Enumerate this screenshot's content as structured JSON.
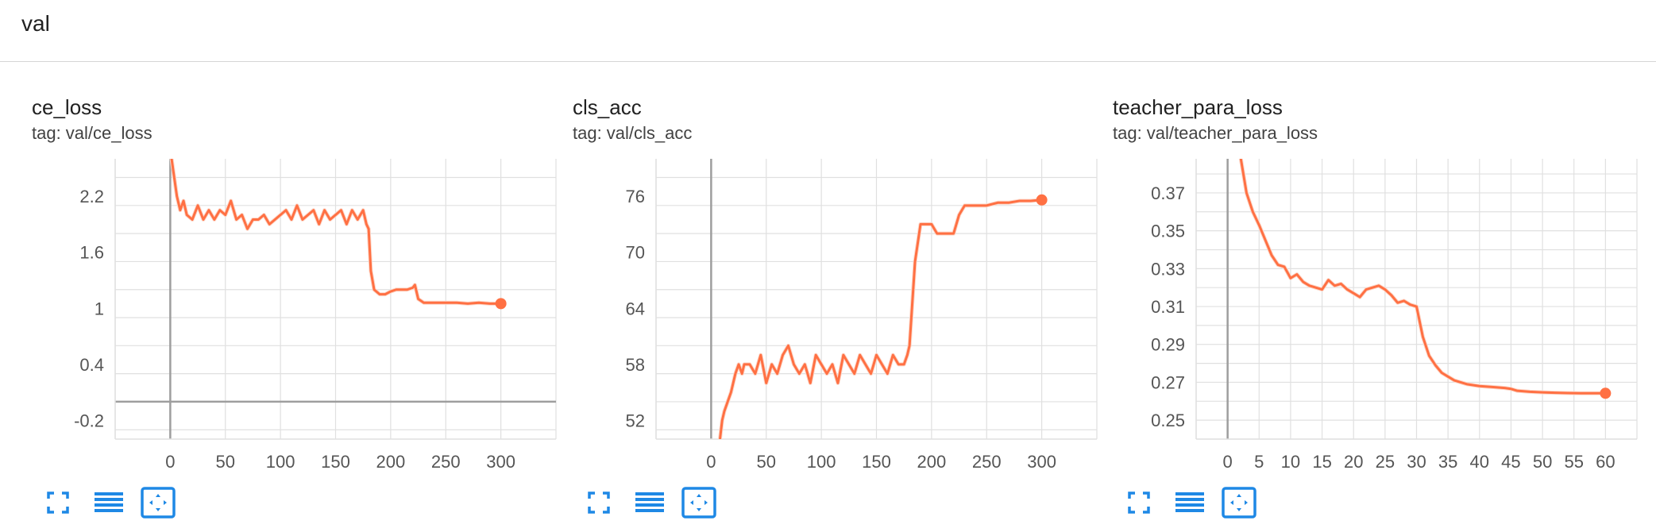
{
  "section": {
    "title": "val"
  },
  "colors": {
    "accent": "#ff7043",
    "smoothed_faint": "#fcd9cc",
    "grid": "#e0e0e0",
    "axis": "#9e9e9e",
    "icon": "#1e88e5"
  },
  "icons": {
    "fullscreen": "fullscreen-icon",
    "data_table": "list-icon",
    "fit_domain": "fit-domain-icon"
  },
  "chart_data": [
    {
      "type": "line",
      "title": "ce_loss",
      "tag": "tag: val/ce_loss",
      "xlim": [
        -50,
        350
      ],
      "ylim": [
        -0.4,
        2.6
      ],
      "xticks": [
        0,
        50,
        100,
        150,
        200,
        250,
        300
      ],
      "xtick_labels": [
        "0",
        "50",
        "100",
        "150",
        "200",
        "250",
        "300"
      ],
      "yticks": [
        -0.2,
        0.4,
        1,
        1.6,
        2.2
      ],
      "ytick_labels": [
        "-0.2",
        "0.4",
        "1",
        "1.6",
        "2.2"
      ],
      "grid": true,
      "series": [
        {
          "x": [
            0,
            3,
            6,
            9,
            12,
            15,
            20,
            25,
            30,
            35,
            40,
            45,
            50,
            55,
            60,
            65,
            70,
            75,
            80,
            85,
            90,
            95,
            100,
            105,
            110,
            115,
            120,
            125,
            130,
            135,
            140,
            145,
            150,
            155,
            160,
            165,
            170,
            175,
            178,
            180,
            182,
            185,
            190,
            195,
            200,
            205,
            210,
            215,
            220,
            222,
            225,
            230,
            240,
            250,
            260,
            270,
            280,
            290,
            300
          ],
          "y": [
            2.7,
            2.45,
            2.2,
            2.05,
            2.15,
            2.0,
            1.95,
            2.1,
            1.95,
            2.05,
            1.95,
            2.05,
            2.0,
            2.15,
            1.95,
            2.0,
            1.85,
            1.95,
            1.95,
            2.0,
            1.9,
            1.95,
            2.0,
            2.05,
            1.95,
            2.1,
            1.95,
            2.0,
            2.05,
            1.9,
            2.05,
            1.95,
            2.0,
            2.05,
            1.9,
            2.05,
            1.95,
            2.05,
            1.9,
            1.85,
            1.4,
            1.2,
            1.15,
            1.15,
            1.18,
            1.2,
            1.2,
            1.2,
            1.22,
            1.25,
            1.1,
            1.06,
            1.06,
            1.06,
            1.06,
            1.05,
            1.06,
            1.05,
            1.05
          ]
        }
      ]
    },
    {
      "type": "line",
      "title": "cls_acc",
      "tag": "tag: val/cls_acc",
      "xlim": [
        -50,
        350
      ],
      "ylim": [
        50,
        80
      ],
      "xticks": [
        0,
        50,
        100,
        150,
        200,
        250,
        300
      ],
      "xtick_labels": [
        "0",
        "50",
        "100",
        "150",
        "200",
        "250",
        "300"
      ],
      "yticks": [
        52,
        58,
        64,
        70,
        76
      ],
      "ytick_labels": [
        "52",
        "58",
        "64",
        "70",
        "76"
      ],
      "grid": true,
      "series": [
        {
          "x": [
            8,
            10,
            12,
            15,
            18,
            20,
            22,
            25,
            28,
            30,
            35,
            40,
            45,
            50,
            55,
            60,
            65,
            70,
            75,
            80,
            85,
            90,
            95,
            100,
            105,
            110,
            115,
            120,
            125,
            130,
            135,
            140,
            145,
            150,
            155,
            160,
            165,
            170,
            175,
            178,
            180,
            185,
            190,
            195,
            200,
            205,
            210,
            215,
            220,
            225,
            230,
            240,
            250,
            260,
            270,
            280,
            290,
            300
          ],
          "y": [
            50,
            52,
            53,
            54,
            55,
            56,
            57,
            58,
            57,
            58,
            58,
            57,
            59,
            56,
            58,
            57,
            59,
            60,
            58,
            57,
            58,
            56,
            59,
            58,
            57,
            58,
            56,
            59,
            58,
            57,
            59,
            58,
            57,
            59,
            58,
            57,
            59,
            58,
            58,
            59,
            60,
            69,
            73,
            73,
            73,
            72,
            72,
            72,
            72,
            74,
            75,
            75,
            75,
            75.3,
            75.3,
            75.5,
            75.5,
            75.6
          ]
        }
      ]
    },
    {
      "type": "line",
      "title": "teacher_para_loss",
      "tag": "tag: val/teacher_para_loss",
      "xlim": [
        -5,
        65
      ],
      "ylim": [
        0.24,
        0.388
      ],
      "xticks": [
        0,
        5,
        10,
        15,
        20,
        25,
        30,
        35,
        40,
        45,
        50,
        55,
        60
      ],
      "xtick_labels": [
        "0",
        "5",
        "10",
        "15",
        "20",
        "25",
        "30",
        "35",
        "40",
        "45",
        "50",
        "55",
        "60"
      ],
      "yticks": [
        0.25,
        0.27,
        0.29,
        0.31,
        0.33,
        0.35,
        0.37
      ],
      "ytick_labels": [
        "0.25",
        "0.27",
        "0.29",
        "0.31",
        "0.33",
        "0.35",
        "0.37"
      ],
      "grid": true,
      "series": [
        {
          "x": [
            2,
            3,
            4,
            5,
            6,
            7,
            8,
            9,
            10,
            11,
            12,
            13,
            14,
            15,
            16,
            17,
            18,
            19,
            20,
            21,
            22,
            23,
            24,
            25,
            26,
            27,
            28,
            29,
            30,
            31,
            32,
            33,
            34,
            35,
            36,
            38,
            40,
            42,
            44,
            45,
            46,
            48,
            50,
            52,
            54,
            56,
            58,
            60
          ],
          "y": [
            0.39,
            0.37,
            0.36,
            0.353,
            0.345,
            0.337,
            0.332,
            0.331,
            0.325,
            0.327,
            0.323,
            0.321,
            0.32,
            0.319,
            0.324,
            0.321,
            0.322,
            0.319,
            0.317,
            0.315,
            0.319,
            0.32,
            0.321,
            0.319,
            0.316,
            0.312,
            0.313,
            0.311,
            0.31,
            0.294,
            0.284,
            0.279,
            0.275,
            0.273,
            0.271,
            0.269,
            0.268,
            0.2675,
            0.267,
            0.2665,
            0.2655,
            0.265,
            0.2647,
            0.2645,
            0.2643,
            0.2642,
            0.2642,
            0.2642
          ]
        }
      ]
    }
  ]
}
